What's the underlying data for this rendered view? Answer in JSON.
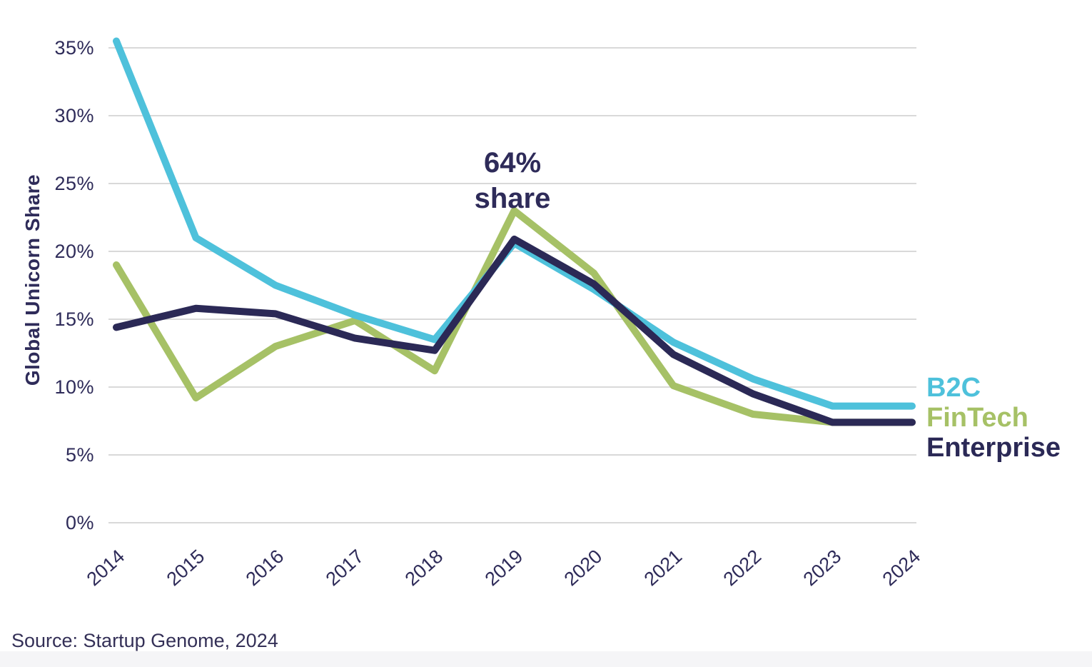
{
  "chart_data": {
    "type": "line",
    "title": "",
    "xlabel": "",
    "ylabel": "Global Unicorn Share",
    "x": [
      "2014",
      "2015",
      "2016",
      "2017",
      "2018",
      "2019",
      "2020",
      "2021",
      "2022",
      "2023",
      "2024"
    ],
    "series": [
      {
        "name": "B2C",
        "color": "#4ec1db",
        "z": 1,
        "values": [
          35.5,
          21,
          17.5,
          15.3,
          13.5,
          20.6,
          17.2,
          13.3,
          10.6,
          8.6,
          8.6
        ]
      },
      {
        "name": "FinTech",
        "color": "#a6c166",
        "z": 0,
        "values": [
          19,
          9.2,
          13,
          14.9,
          11.2,
          23,
          18.4,
          10.1,
          8,
          7.4,
          7.4
        ]
      },
      {
        "name": "Enterprise",
        "color": "#2b2956",
        "z": 2,
        "values": [
          14.4,
          15.8,
          15.4,
          13.6,
          12.7,
          20.9,
          17.6,
          12.4,
          9.5,
          7.4,
          7.4
        ]
      }
    ],
    "ylim": [
      0,
      37.5
    ],
    "ytick_values": [
      0,
      5,
      10,
      15,
      20,
      25,
      30,
      35
    ],
    "ytick_labels": [
      "0%",
      "5%",
      "10%",
      "15%",
      "20%",
      "25%",
      "30%",
      "35%"
    ],
    "grid": true,
    "legend_position": "right",
    "annotation": {
      "line1": "64%",
      "line2": "share",
      "year": "2019"
    }
  },
  "source": "Source: Startup Genome, 2024",
  "colors": {
    "gridline": "#d9d9d9",
    "text": "#2e2b59",
    "footer_strip": "#f5f5f7"
  }
}
